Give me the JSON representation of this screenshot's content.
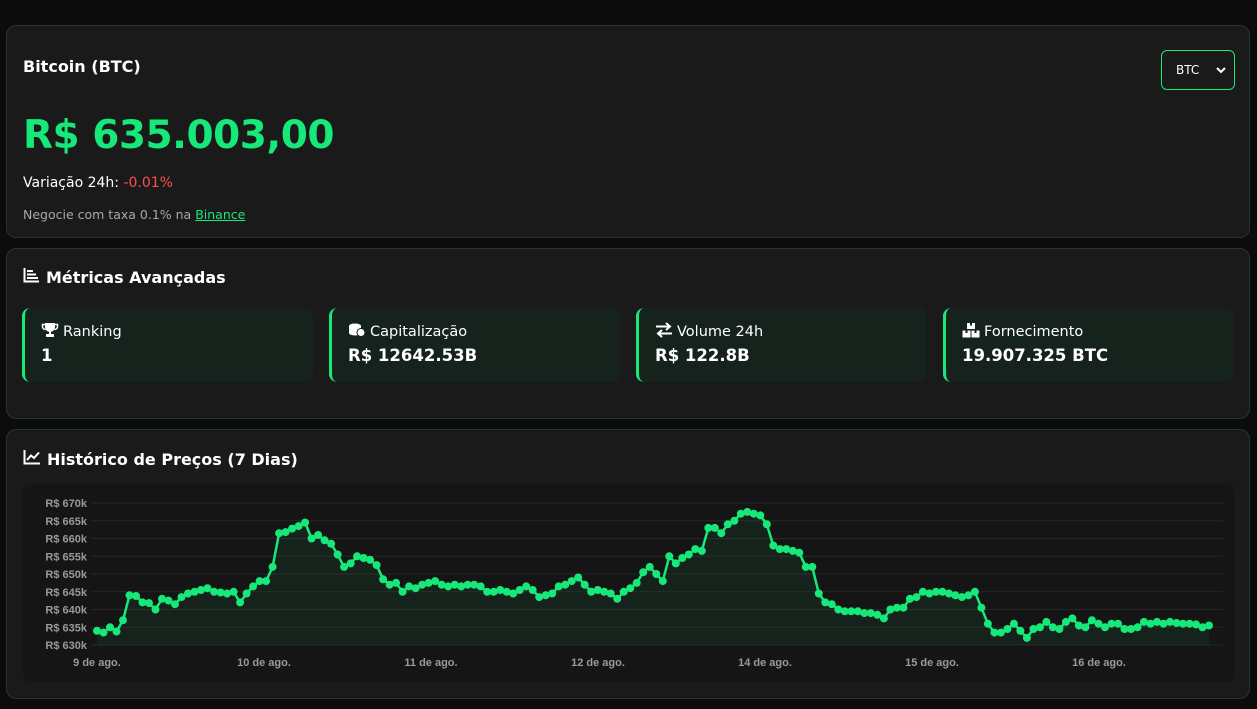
{
  "price_card": {
    "title": "Bitcoin (BTC)",
    "price": "R$ 635.003,00",
    "change_label": "Variação 24h:",
    "change_value": "-0.01%",
    "trade_prefix": "Negocie com taxa 0.1% na",
    "trade_link": "Binance",
    "select_value": "BTC"
  },
  "metrics": {
    "title": "Métricas Avançadas",
    "items": [
      {
        "label": "Ranking",
        "value": "1",
        "icon": "trophy-icon"
      },
      {
        "label": "Capitalização",
        "value": "R$ 12642.53B",
        "icon": "coins-icon"
      },
      {
        "label": "Volume 24h",
        "value": "R$ 122.8B",
        "icon": "exchange-icon"
      },
      {
        "label": "Fornecimento",
        "value": "19.907.325 BTC",
        "icon": "boxes-icon"
      }
    ]
  },
  "history": {
    "title": "Histórico de Preços (7 Dias)"
  },
  "colors": {
    "accent": "#17e87a",
    "negative": "#ff4d4d",
    "card_bg": "#1a1a1a",
    "metric_bg": "#16231c"
  },
  "chart_data": {
    "type": "line",
    "title": "",
    "xlabel": "",
    "ylabel": "",
    "x_tick_labels": [
      "9 de ago.",
      "10 de ago.",
      "11 de ago.",
      "12 de ago.",
      "14 de ago.",
      "15 de ago.",
      "16 de ago."
    ],
    "y_tick_labels": [
      "R$ 670k",
      "R$ 665k",
      "R$ 660k",
      "R$ 655k",
      "R$ 650k",
      "R$ 645k",
      "R$ 640k",
      "R$ 635k",
      "R$ 630k"
    ],
    "ylim": [
      630000,
      670000
    ],
    "grid": true,
    "fill": true,
    "values": [
      634000,
      633500,
      635000,
      633800,
      637000,
      644000,
      643800,
      642000,
      641800,
      640000,
      643000,
      642500,
      641500,
      643500,
      644500,
      645000,
      645500,
      646000,
      645000,
      644800,
      644500,
      645000,
      642000,
      644500,
      646500,
      648000,
      648000,
      652000,
      661500,
      661800,
      662800,
      663500,
      664500,
      660000,
      661000,
      659500,
      658500,
      655500,
      652000,
      653000,
      655000,
      654500,
      654000,
      652500,
      648500,
      647000,
      647500,
      645000,
      646500,
      646000,
      647000,
      647500,
      648000,
      647000,
      646500,
      647000,
      646500,
      647000,
      647000,
      646500,
      645000,
      645000,
      645500,
      645000,
      644500,
      645500,
      646500,
      645500,
      643500,
      644000,
      644500,
      646500,
      647000,
      648000,
      649000,
      647000,
      645000,
      645500,
      645000,
      644500,
      643000,
      645000,
      646000,
      647500,
      650500,
      652000,
      650000,
      648000,
      655000,
      653000,
      654500,
      655500,
      657000,
      656500,
      663000,
      663000,
      661500,
      664000,
      665000,
      667000,
      667500,
      667000,
      666500,
      664000,
      658000,
      657000,
      657000,
      656500,
      656000,
      652000,
      652000,
      644500,
      642000,
      641500,
      640000,
      639500,
      639500,
      639500,
      639000,
      639000,
      638500,
      637500,
      640000,
      640500,
      640500,
      643000,
      643500,
      645000,
      644500,
      645000,
      645000,
      644500,
      644000,
      643500,
      644000,
      645000,
      640500,
      636000,
      633500,
      633500,
      634500,
      636000,
      634000,
      632000,
      634500,
      635000,
      636500,
      635000,
      634500,
      636500,
      637500,
      635500,
      635000,
      637000,
      636000,
      635000,
      636000,
      636000,
      634500,
      634500,
      635000,
      636500,
      636000,
      636500,
      636000,
      636500,
      636200,
      636000,
      636000,
      635800,
      635000,
      635500
    ]
  }
}
